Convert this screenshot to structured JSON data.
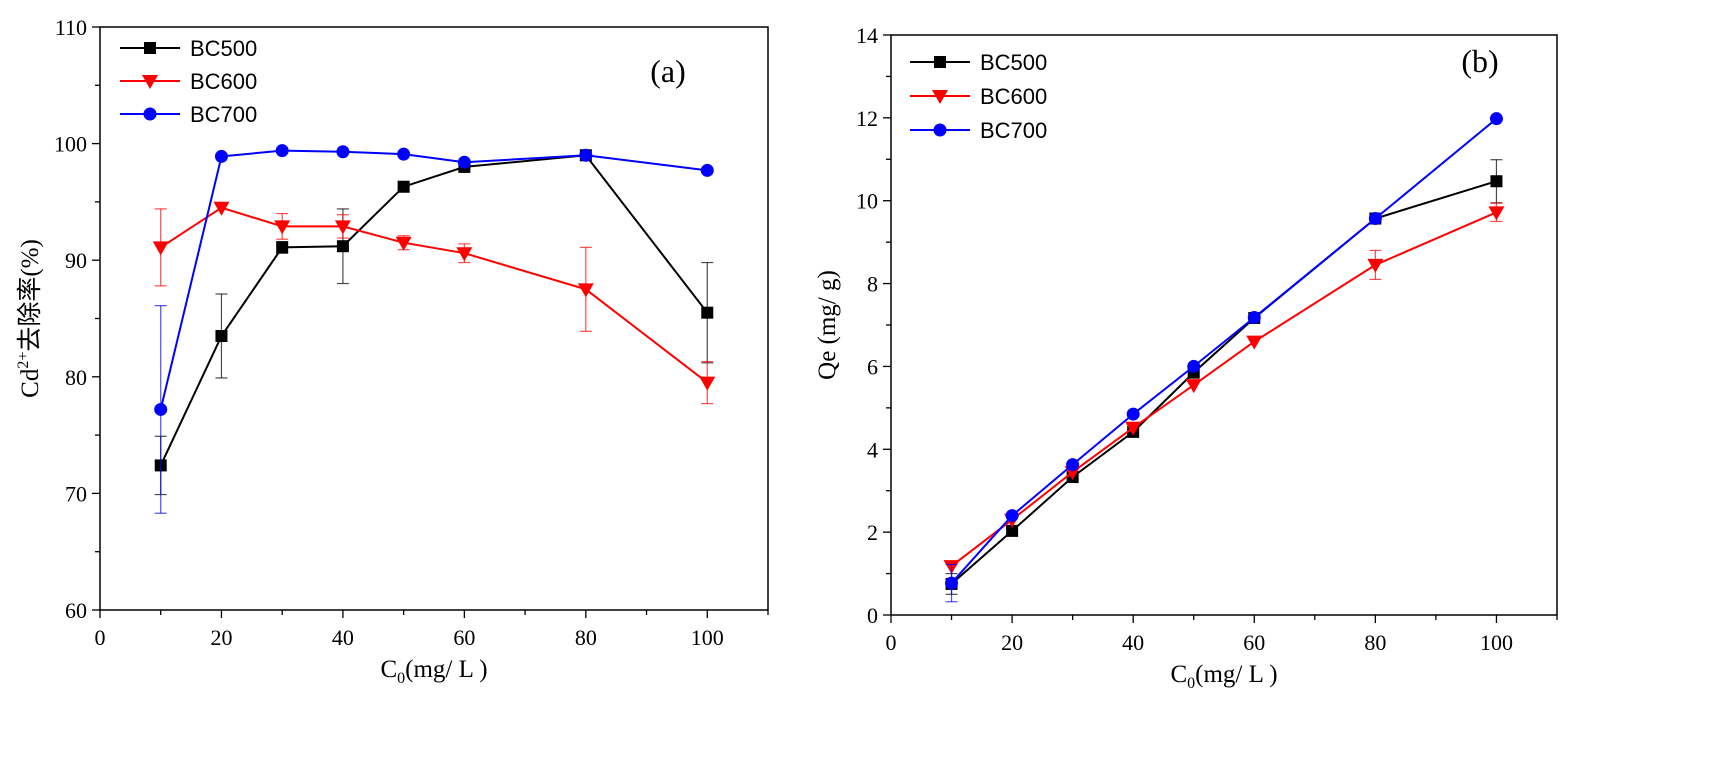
{
  "colors": {
    "BC500": "#000000",
    "BC600": "#ff0000",
    "BC700": "#0000ff"
  },
  "chart_data": [
    {
      "type": "line",
      "panel_label": "(a)",
      "xlabel": {
        "base": "C",
        "sub": "0",
        "rest": "(mg/ L )"
      },
      "ylabel": {
        "pre": "Cd",
        "sup": "2+",
        "rest": "去除率(%)"
      },
      "xlim": [
        0,
        110
      ],
      "ylim": [
        60,
        110
      ],
      "xticks": [
        0,
        20,
        40,
        60,
        80,
        100
      ],
      "yticks": [
        60,
        70,
        80,
        90,
        100,
        110
      ],
      "grid": false,
      "legend": "top-left",
      "x": [
        10,
        20,
        30,
        40,
        50,
        60,
        80,
        100
      ],
      "series": [
        {
          "name": "BC500",
          "marker": "square",
          "values": [
            72.4,
            83.5,
            91.1,
            91.2,
            96.3,
            98.0,
            99.0,
            85.5
          ],
          "error": [
            2.5,
            3.6,
            0.5,
            3.2,
            0,
            0,
            0,
            4.3
          ]
        },
        {
          "name": "BC600",
          "marker": "triangle-down",
          "values": [
            91.1,
            94.5,
            92.9,
            92.9,
            91.5,
            90.6,
            87.5,
            79.5
          ],
          "error": [
            3.3,
            0,
            1.1,
            1.0,
            0.6,
            0.8,
            3.6,
            1.8
          ]
        },
        {
          "name": "BC700",
          "marker": "circle",
          "values": [
            77.2,
            98.9,
            99.4,
            99.3,
            99.1,
            98.4,
            99.0,
            97.7
          ],
          "error": [
            8.9,
            0,
            0,
            0,
            0,
            0,
            0,
            0
          ]
        }
      ]
    },
    {
      "type": "line",
      "panel_label": "(b)",
      "xlabel": {
        "base": "C",
        "sub": "0",
        "rest": "(mg/ L )"
      },
      "ylabel": {
        "pre": "Qe (mg/ g)",
        "sup": "",
        "rest": ""
      },
      "xlim": [
        0,
        110
      ],
      "ylim": [
        0,
        14
      ],
      "xticks": [
        0,
        20,
        40,
        60,
        80,
        100
      ],
      "yticks": [
        0,
        2,
        4,
        6,
        8,
        10,
        12,
        14
      ],
      "grid": false,
      "legend": "top-left",
      "x": [
        10,
        20,
        30,
        40,
        50,
        60,
        80,
        100
      ],
      "series": [
        {
          "name": "BC500",
          "marker": "square",
          "values": [
            0.75,
            2.03,
            3.33,
            4.42,
            5.85,
            7.17,
            9.57,
            10.47
          ],
          "error": [
            0.25,
            0,
            0,
            0,
            0,
            0,
            0,
            0.52
          ]
        },
        {
          "name": "BC600",
          "marker": "triangle-down",
          "values": [
            1.18,
            2.3,
            3.45,
            4.52,
            5.55,
            6.6,
            8.45,
            9.72
          ],
          "error": [
            0,
            0,
            0,
            0,
            0,
            0,
            0.35,
            0.22
          ]
        },
        {
          "name": "BC700",
          "marker": "circle",
          "values": [
            0.77,
            2.4,
            3.63,
            4.85,
            6.0,
            7.18,
            9.57,
            11.98
          ],
          "error": [
            0.45,
            0,
            0,
            0,
            0,
            0,
            0,
            0
          ]
        }
      ]
    }
  ]
}
